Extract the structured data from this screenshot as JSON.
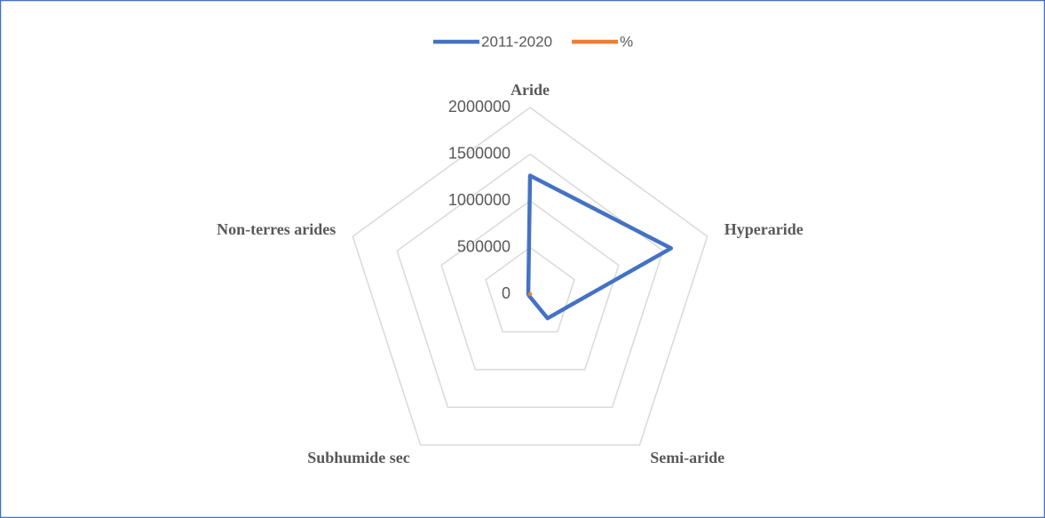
{
  "chart_data": {
    "type": "radar",
    "categories": [
      "Aride",
      "Hyperaride",
      "Semi-aride",
      "Subhumide sec",
      "Non-terres arides"
    ],
    "series": [
      {
        "name": "2011-2020",
        "color": "#4472c4",
        "values": [
          1270000,
          1590000,
          320000,
          20000,
          20000
        ]
      },
      {
        "name": "%",
        "color": "#ed7d31",
        "values": [
          39,
          49,
          10,
          1,
          1
        ]
      }
    ],
    "rlim": [
      0,
      2000000
    ],
    "rticks": [
      0,
      500000,
      1000000,
      1500000,
      2000000
    ],
    "grid": true,
    "legend": "top"
  }
}
